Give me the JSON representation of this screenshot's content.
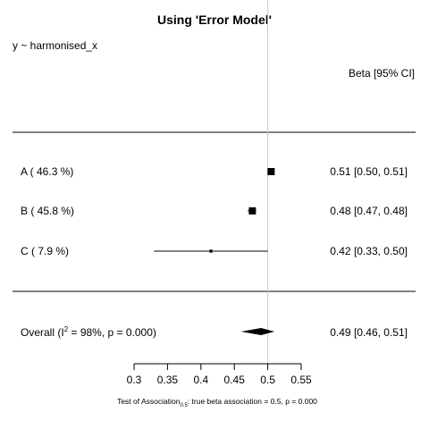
{
  "chart_data": {
    "type": "forest",
    "title": "Using 'Error Model'",
    "formula": "y ~ harmonised_x",
    "column_header": "Beta [95% CI]",
    "reference_value": 0.5,
    "xlim": [
      0.3,
      0.55
    ],
    "x_ticks": [
      "0.3",
      "0.35",
      "0.4",
      "0.45",
      "0.5",
      "0.55"
    ],
    "rows": [
      {
        "label": "A  ( 46.3 %)",
        "weight": 46.3,
        "estimate": 0.505,
        "lower": 0.5,
        "upper": 0.51,
        "ci_text": "0.51 [0.50, 0.51]"
      },
      {
        "label": "B  ( 45.8 %)",
        "weight": 45.8,
        "estimate": 0.477,
        "lower": 0.47,
        "upper": 0.48,
        "ci_text": "0.48 [0.47, 0.48]"
      },
      {
        "label": "C  ( 7.9 %)",
        "weight": 7.9,
        "estimate": 0.415,
        "lower": 0.33,
        "upper": 0.5,
        "ci_text": "0.42 [0.33, 0.50]"
      }
    ],
    "overall": {
      "label_prefix": "Overall (I",
      "label_sup": "2",
      "label_suffix": " = 98%, p = 0.000)",
      "estimate": 0.49,
      "lower": 0.46,
      "upper": 0.51,
      "ci_text": "0.49 [0.46, 0.51]"
    },
    "footnote": {
      "prefix": "Test of Association",
      "sub": "0.5",
      "suffix": ": true beta association = 0.5, p = 0.000"
    }
  }
}
